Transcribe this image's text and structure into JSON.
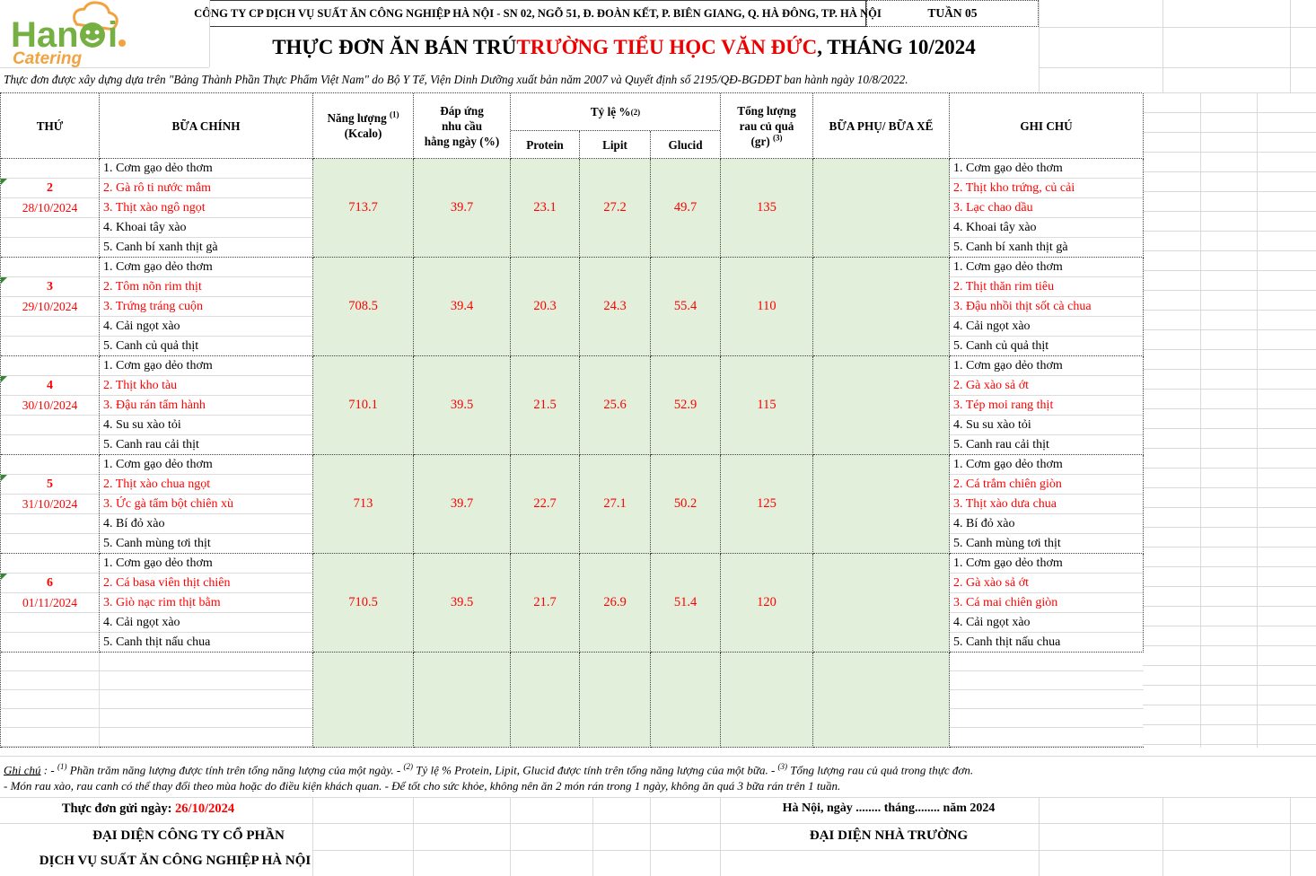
{
  "colors": {
    "accent_red": "#ff0000",
    "fill_green": "#e2efda",
    "logo_green": "#76b043",
    "logo_orange": "#f2a341"
  },
  "logo": {
    "line1": "Hanoi",
    "line2": "Catering"
  },
  "header": {
    "company_line": "CÔNG TY CP DỊCH VỤ SUẤT ĂN CÔNG NGHIỆP HÀ NỘI - SN 02, NGÕ 51, Đ. ĐOÀN KẾT, P. BIÊN GIANG, Q. HÀ ĐÔNG, TP. HÀ NỘI",
    "week_label": "TUẦN 05",
    "title_black1": "THỰC ĐƠN ĂN BÁN TRÚ ",
    "title_red": "TRƯỜNG TIỂU HỌC VĂN ĐỨC",
    "title_black2": ", THÁNG 10/2024",
    "basis_note": "Thực đơn được xây dựng dựa trên \"Bảng Thành Phần Thực Phẩm Việt Nam\" do Bộ Y Tế, Viện Dinh Dưỡng xuất bản năm 2007 và Quyết định số 2195/QĐ-BGDĐT ban hành ngày 10/8/2022."
  },
  "table": {
    "header": {
      "thu": "THỨ",
      "bua_chinh": "BỮA CHÍNH",
      "energy_l1": "Năng lượng",
      "energy_sup": "(1)",
      "energy_l2": "(Kcalo)",
      "dap_ung_l1": "Đáp ứng",
      "dap_ung_l2": "nhu cầu",
      "dap_ung_l3": "hằng ngày (%)",
      "ty_le": "Tỷ lệ %",
      "ty_le_sup": "(2)",
      "protein": "Protein",
      "lipit": "Lipit",
      "glucid": "Glucid",
      "veg_l1": "Tổng lượng",
      "veg_l2": "rau củ quả",
      "veg_l3": "(gr)",
      "veg_sup": "(3)",
      "bua_phu": "BỮA PHỤ/ BỮA XẾ",
      "ghi_chu": "GHI CHÚ"
    },
    "rows": [
      {
        "day": "2",
        "date": "28/10/2024",
        "energy": "713.7",
        "daily_pct": "39.7",
        "protein": "23.1",
        "lipit": "27.2",
        "glucid": "49.7",
        "veg": "135",
        "side_meal": "",
        "main_dishes": [
          {
            "text": "1. Cơm gạo dẻo thơm",
            "red": false
          },
          {
            "text": "2. Gà rô ti nước mắm",
            "red": true
          },
          {
            "text": "3. Thịt xào ngô ngọt",
            "red": true
          },
          {
            "text": "4. Khoai tây xào",
            "red": false
          },
          {
            "text": "5. Canh bí xanh thịt gà",
            "red": false
          }
        ],
        "notes": [
          {
            "text": "1. Cơm gạo dẻo thơm",
            "red": false
          },
          {
            "text": "2. Thịt kho trứng, củ cải",
            "red": true
          },
          {
            "text": "3. Lạc chao dầu",
            "red": true
          },
          {
            "text": "4. Khoai tây xào",
            "red": false
          },
          {
            "text": "5. Canh bí xanh thịt gà",
            "red": false
          }
        ]
      },
      {
        "day": "3",
        "date": "29/10/2024",
        "energy": "708.5",
        "daily_pct": "39.4",
        "protein": "20.3",
        "lipit": "24.3",
        "glucid": "55.4",
        "veg": "110",
        "side_meal": "",
        "main_dishes": [
          {
            "text": "1. Cơm gạo dẻo thơm",
            "red": false
          },
          {
            "text": "2. Tôm nõn rim thịt",
            "red": true
          },
          {
            "text": "3. Trứng tráng cuộn",
            "red": true
          },
          {
            "text": "4. Cải ngọt xào",
            "red": false
          },
          {
            "text": "5. Canh củ quả thịt",
            "red": false
          }
        ],
        "notes": [
          {
            "text": "1. Cơm gạo dẻo thơm",
            "red": false
          },
          {
            "text": "2. Thịt thăn rim tiêu",
            "red": true
          },
          {
            "text": "3. Đậu nhồi thịt sốt cà chua",
            "red": true
          },
          {
            "text": "4. Cải ngọt xào",
            "red": false
          },
          {
            "text": "5. Canh củ quả thịt",
            "red": false
          }
        ]
      },
      {
        "day": "4",
        "date": "30/10/2024",
        "energy": "710.1",
        "daily_pct": "39.5",
        "protein": "21.5",
        "lipit": "25.6",
        "glucid": "52.9",
        "veg": "115",
        "side_meal": "",
        "main_dishes": [
          {
            "text": "1. Cơm gạo dẻo thơm",
            "red": false
          },
          {
            "text": "2. Thịt kho tàu",
            "red": true
          },
          {
            "text": "3. Đậu rán tẩm hành",
            "red": true
          },
          {
            "text": "4. Su su xào tỏi",
            "red": false
          },
          {
            "text": "5. Canh rau cải thịt",
            "red": false
          }
        ],
        "notes": [
          {
            "text": "1. Cơm gạo dẻo thơm",
            "red": false
          },
          {
            "text": "2. Gà xào sả ớt",
            "red": true
          },
          {
            "text": "3. Tép moi rang thịt",
            "red": true
          },
          {
            "text": "4. Su su xào tỏi",
            "red": false
          },
          {
            "text": "5. Canh rau cải thịt",
            "red": false
          }
        ]
      },
      {
        "day": "5",
        "date": "31/10/2024",
        "energy": "713",
        "daily_pct": "39.7",
        "protein": "22.7",
        "lipit": "27.1",
        "glucid": "50.2",
        "veg": "125",
        "side_meal": "",
        "main_dishes": [
          {
            "text": "1. Cơm gạo dẻo thơm",
            "red": false
          },
          {
            "text": "2. Thịt xào chua ngọt",
            "red": true
          },
          {
            "text": "3. Ức gà tẩm bột chiên xù",
            "red": true
          },
          {
            "text": "4. Bí đỏ xào",
            "red": false
          },
          {
            "text": "5. Canh mùng tơi thịt",
            "red": false
          }
        ],
        "notes": [
          {
            "text": "1. Cơm gạo dẻo thơm",
            "red": false
          },
          {
            "text": "2. Cá trắm chiên giòn",
            "red": true
          },
          {
            "text": "3. Thịt xào dưa chua",
            "red": true
          },
          {
            "text": "4. Bí đỏ xào",
            "red": false
          },
          {
            "text": "5. Canh mùng tơi thịt",
            "red": false
          }
        ]
      },
      {
        "day": "6",
        "date": "01/11/2024",
        "energy": "710.5",
        "daily_pct": "39.5",
        "protein": "21.7",
        "lipit": "26.9",
        "glucid": "51.4",
        "veg": "120",
        "side_meal": "",
        "main_dishes": [
          {
            "text": "1. Cơm gạo dẻo thơm",
            "red": false
          },
          {
            "text": "2. Cá basa viên thịt chiên",
            "red": true
          },
          {
            "text": "3. Giò nạc rim thịt bằm",
            "red": true
          },
          {
            "text": "4. Cải ngọt xào",
            "red": false
          },
          {
            "text": "5. Canh thịt nấu chua",
            "red": false
          }
        ],
        "notes": [
          {
            "text": "1. Cơm gạo dẻo thơm",
            "red": false
          },
          {
            "text": "2. Gà xào sả ớt",
            "red": true
          },
          {
            "text": "3. Cá mai chiên giòn",
            "red": true
          },
          {
            "text": "4. Cải ngọt xào",
            "red": false
          },
          {
            "text": "5. Canh thịt nấu chua",
            "red": false
          }
        ]
      }
    ]
  },
  "footer": {
    "note1_label": "Ghi chú",
    "note1_sep": " : - ",
    "sup1": "(1)",
    "note1_a": " Phần trăm năng lượng được tính trên tổng năng lượng của một ngày. - ",
    "sup2": "(2)",
    "note1_b": " Tỷ lệ % Protein, Lipit, Glucid được tính trên tổng năng lượng của một bữa. - ",
    "sup3": "(3)",
    "note1_c": " Tổng lượng rau củ quả trong thực đơn.",
    "note2": "- Món rau xào, rau canh có thể thay đổi theo mùa hoặc do điều kiện khách quan. - Để tốt cho sức khỏe, không nên ăn 2 món rán trong 1 ngày, không ăn quá 3 bữa rán trên 1 tuần.",
    "sent_label": "Thực đơn gửi ngày: ",
    "sent_date": "26/10/2024",
    "right_place": "Hà Nội, ngày ........ tháng........ năm 2024",
    "left_sign_l1": "ĐẠI DIỆN CÔNG TY CỔ PHẦN",
    "left_sign_l2": "DỊCH VỤ SUẤT ĂN CÔNG NGHIỆP HÀ NỘI",
    "right_sign": "ĐẠI DIỆN NHÀ TRƯỜNG"
  }
}
